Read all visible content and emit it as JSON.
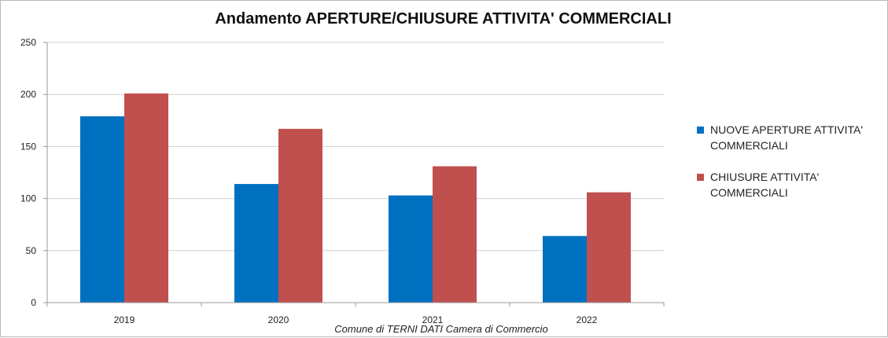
{
  "chart_data": {
    "type": "bar",
    "title": "Andamento APERTURE/CHIUSURE ATTIVITA' COMMERCIALI",
    "categories": [
      "2019",
      "2020",
      "2021",
      "2022"
    ],
    "series": [
      {
        "name": "NUOVE APERTURE ATTIVITA' COMMERCIALI",
        "color": "#0070c0",
        "values": [
          179,
          114,
          103,
          64
        ]
      },
      {
        "name": "CHIUSURE ATTIVITA' COMMERCIALI",
        "color": "#c0504d",
        "values": [
          201,
          167,
          131,
          106
        ]
      }
    ],
    "ylim": [
      0,
      250
    ],
    "yticks": [
      0,
      50,
      100,
      150,
      200,
      250
    ],
    "grid": true,
    "legend_position": "right",
    "xlabel": "Comune di TERNI DATI Camera di Commercio",
    "ylabel": ""
  }
}
